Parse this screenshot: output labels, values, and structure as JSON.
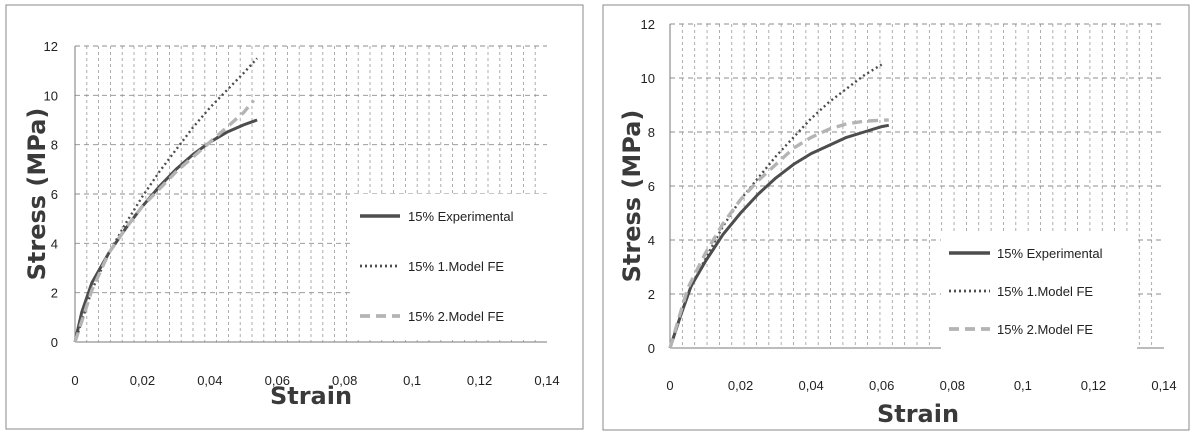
{
  "chart_data": [
    {
      "type": "line",
      "xlabel": "Strain",
      "ylabel": "Stress (MPa)",
      "xlim": [
        0,
        0.14
      ],
      "ylim": [
        0,
        12
      ],
      "x_ticks": [
        "0",
        "0,02",
        "0,04",
        "0,06",
        "0,08",
        "0,1",
        "0,12",
        "0,14"
      ],
      "y_ticks": [
        "0",
        "2",
        "4",
        "6",
        "8",
        "10",
        "12"
      ],
      "grid": "major horizontal dashed, minor vertical dashed",
      "legend_position": "right",
      "series": [
        {
          "name": "15% Experimental",
          "color": "#4d4d4d",
          "style": "solid",
          "x": [
            0,
            0.002,
            0.005,
            0.01,
            0.015,
            0.02,
            0.025,
            0.03,
            0.035,
            0.04,
            0.045,
            0.05,
            0.054
          ],
          "y": [
            0,
            1.2,
            2.4,
            3.6,
            4.6,
            5.5,
            6.3,
            7.0,
            7.6,
            8.1,
            8.5,
            8.8,
            9.0
          ]
        },
        {
          "name": "15% 1.Model FE",
          "color": "#4d4d4d",
          "style": "dotted",
          "x": [
            0,
            0.005,
            0.01,
            0.015,
            0.02,
            0.025,
            0.03,
            0.035,
            0.04,
            0.045,
            0.05,
            0.054
          ],
          "y": [
            0,
            2.1,
            3.6,
            4.8,
            5.9,
            6.9,
            7.8,
            8.7,
            9.5,
            10.2,
            10.9,
            11.5
          ]
        },
        {
          "name": "15% 2.Model FE",
          "color": "#b4b4b4",
          "style": "dashed",
          "x": [
            0,
            0.005,
            0.01,
            0.015,
            0.02,
            0.025,
            0.03,
            0.035,
            0.04,
            0.045,
            0.05,
            0.053
          ],
          "y": [
            0,
            2.1,
            3.6,
            4.6,
            5.5,
            6.2,
            6.9,
            7.5,
            8.1,
            8.7,
            9.3,
            9.8
          ]
        }
      ]
    },
    {
      "type": "line",
      "xlabel": "Strain",
      "ylabel": "Stress (MPa)",
      "xlim": [
        0,
        0.14
      ],
      "ylim": [
        0,
        12
      ],
      "x_ticks": [
        "0",
        "0,02",
        "0,04",
        "0,06",
        "0,08",
        "0,1",
        "0,12",
        "0,14"
      ],
      "y_ticks": [
        "0",
        "2",
        "4",
        "6",
        "8",
        "10",
        "12"
      ],
      "grid": "major horizontal dashed, minor vertical dashed",
      "legend_position": "right",
      "series": [
        {
          "name": "15% Experimental",
          "color": "#4d4d4d",
          "style": "solid",
          "x": [
            0,
            0.003,
            0.006,
            0.01,
            0.015,
            0.02,
            0.025,
            0.03,
            0.035,
            0.04,
            0.045,
            0.05,
            0.055,
            0.06,
            0.062
          ],
          "y": [
            0,
            1.2,
            2.3,
            3.2,
            4.2,
            5.0,
            5.7,
            6.3,
            6.8,
            7.2,
            7.5,
            7.8,
            8.0,
            8.2,
            8.25
          ]
        },
        {
          "name": "15% 1.Model FE",
          "color": "#4d4d4d",
          "style": "dotted",
          "x": [
            0,
            0.005,
            0.01,
            0.015,
            0.02,
            0.025,
            0.03,
            0.035,
            0.04,
            0.045,
            0.05,
            0.055,
            0.06
          ],
          "y": [
            0,
            2.0,
            3.3,
            4.5,
            5.5,
            6.3,
            7.1,
            7.8,
            8.5,
            9.1,
            9.6,
            10.1,
            10.5
          ]
        },
        {
          "name": "15% 2.Model FE",
          "color": "#b4b4b4",
          "style": "dashed",
          "x": [
            0,
            0.005,
            0.01,
            0.015,
            0.02,
            0.025,
            0.03,
            0.035,
            0.04,
            0.045,
            0.05,
            0.055,
            0.062
          ],
          "y": [
            0,
            2.2,
            3.5,
            4.6,
            5.5,
            6.2,
            6.8,
            7.4,
            7.8,
            8.1,
            8.3,
            8.4,
            8.45
          ]
        }
      ]
    }
  ]
}
